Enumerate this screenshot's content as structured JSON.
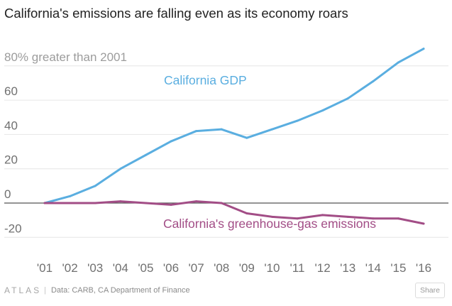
{
  "title": "California's emissions are falling even as its economy roars",
  "footer": {
    "logo": "ATLAS",
    "separator": "|",
    "source": "Data: CARB, CA Department of Finance",
    "share_label": "Share"
  },
  "colors": {
    "gdp": "#5aaee0",
    "emissions": "#a24d86",
    "grid": "#e6e6e6",
    "zero_line": "#555555",
    "tick_text": "#707070",
    "annotation": "#9c9c9c"
  },
  "chart_data": {
    "type": "line",
    "title": "California's emissions are falling even as its economy roars",
    "annotation": "80% greater than 2001",
    "x": [
      "'01",
      "'02",
      "'03",
      "'04",
      "'05",
      "'06",
      "'07",
      "'08",
      "'09",
      "'10",
      "'11",
      "'12",
      "'13",
      "'14",
      "'15",
      "'16"
    ],
    "yticks": [
      80,
      60,
      40,
      20,
      0,
      -20
    ],
    "ytick_labels": [
      "80% greater than 2001",
      "60",
      "40",
      "20",
      "0",
      "-20"
    ],
    "ylim": [
      -25,
      97
    ],
    "grid": true,
    "series": [
      {
        "name": "California GDP",
        "key": "gdp",
        "values": [
          0,
          4,
          10,
          20,
          28,
          36,
          42,
          43,
          38,
          43,
          48,
          54,
          61,
          71,
          82,
          90
        ]
      },
      {
        "name": "California's greenhouse-gas emissions",
        "key": "emissions",
        "values": [
          0,
          0,
          0,
          1,
          0,
          -1,
          1,
          0,
          -6,
          -8,
          -9,
          -7,
          -8,
          -9,
          -9,
          -12
        ]
      }
    ]
  }
}
